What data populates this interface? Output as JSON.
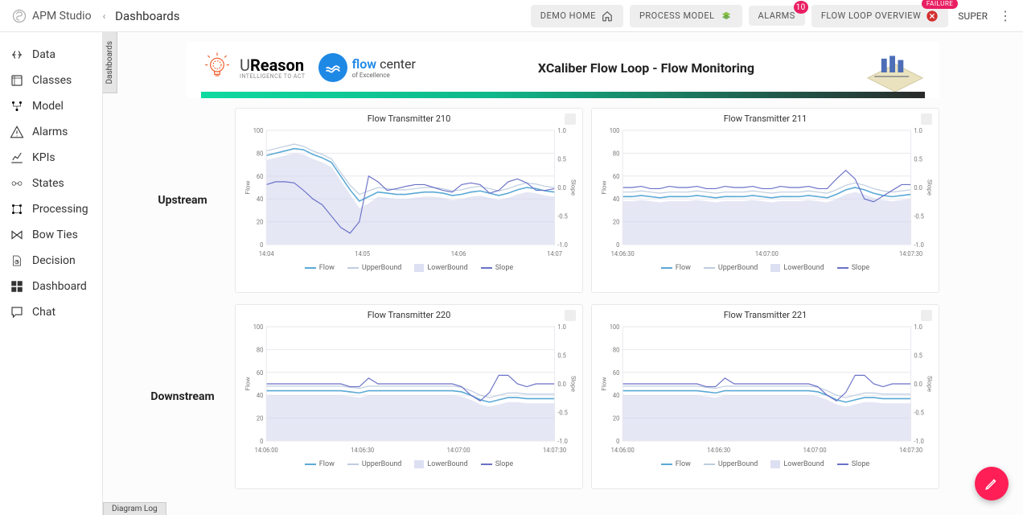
{
  "app": {
    "name": "APM Studio",
    "page": "Dashboards"
  },
  "topButtons": {
    "demoHome": "DEMO HOME",
    "processModel": "PROCESS MODEL",
    "alarms": "ALARMS",
    "alarmsBadge": "10",
    "flowLoop": "FLOW LOOP OVERVIEW",
    "flowLoopBadge": "FAILURE",
    "super": "SUPER"
  },
  "sidebar": [
    {
      "label": "Data",
      "icon": "data"
    },
    {
      "label": "Classes",
      "icon": "classes"
    },
    {
      "label": "Model",
      "icon": "model"
    },
    {
      "label": "Alarms",
      "icon": "alarms"
    },
    {
      "label": "KPIs",
      "icon": "kpis"
    },
    {
      "label": "States",
      "icon": "states"
    },
    {
      "label": "Processing",
      "icon": "processing"
    },
    {
      "label": "Bow Ties",
      "icon": "bowties"
    },
    {
      "label": "Decision",
      "icon": "decision"
    },
    {
      "label": "Dashboard",
      "icon": "dashboard"
    },
    {
      "label": "Chat",
      "icon": "chat"
    }
  ],
  "vertTab": "Dashboards",
  "footerTab": "Diagram Log",
  "banner": {
    "ureason": {
      "name": "UReason",
      "tag": "INTELLIGENCE TO ACT"
    },
    "flowcenter": {
      "name1": "flow",
      "name2": "center",
      "sub": "of Excellence"
    },
    "title": "XCaliber Flow Loop - Flow Monitoring"
  },
  "rows": {
    "upstream": "Upstream",
    "downstream": "Downstream"
  },
  "legendLabels": {
    "flow": "Flow",
    "upper": "UpperBound",
    "lower": "LowerBound",
    "slope": "Slope"
  },
  "chartStyle": {
    "flowColor": "#5aa9d6",
    "upperColor": "#bfcde0",
    "lowerFill": "#cfd3ec",
    "slopeColor": "#6a71c7",
    "gridColor": "#e8e8ef",
    "axisText": "#777",
    "bg": "#ffffff",
    "yLeft": {
      "min": 0,
      "max": 100,
      "step": 20,
      "label": "Flow"
    },
    "yRight": {
      "min": -1.0,
      "max": 1.0,
      "step": 0.5,
      "label": "Slope"
    },
    "tickFont": 8,
    "titleFont": 11
  },
  "charts": {
    "ft210": {
      "title": "Flow Transmitter 210",
      "xticks": [
        "14:04",
        "14:05",
        "14:06",
        "14:07"
      ],
      "flow": [
        78,
        80,
        82,
        84,
        83,
        79,
        76,
        72,
        60,
        48,
        38,
        42,
        46,
        45,
        44,
        44,
        45,
        46,
        46,
        45,
        43,
        44,
        46,
        47,
        45,
        43,
        45,
        48,
        50,
        49,
        47,
        46
      ],
      "upper": [
        82,
        84,
        86,
        88,
        86,
        82,
        79,
        75,
        63,
        52,
        44,
        47,
        50,
        49,
        48,
        48,
        49,
        50,
        50,
        49,
        47,
        48,
        50,
        51,
        49,
        47,
        49,
        52,
        54,
        53,
        51,
        50
      ],
      "lower": [
        74,
        76,
        78,
        80,
        79,
        75,
        72,
        68,
        56,
        44,
        32,
        36,
        42,
        41,
        40,
        40,
        41,
        42,
        42,
        41,
        39,
        40,
        42,
        43,
        41,
        39,
        41,
        44,
        46,
        45,
        43,
        42
      ],
      "slope": [
        0.05,
        0.1,
        0.1,
        0.08,
        -0.05,
        -0.2,
        -0.3,
        -0.5,
        -0.7,
        -0.8,
        -0.6,
        0.2,
        0.1,
        -0.05,
        -0.02,
        0.02,
        0.05,
        0.05,
        0,
        -0.05,
        -0.08,
        0.05,
        0.08,
        0.05,
        -0.1,
        -0.05,
        0.1,
        0.15,
        0.08,
        -0.05,
        -0.05,
        -0.02
      ]
    },
    "ft211": {
      "title": "Flow Transmitter 211",
      "xticks": [
        "14:06:30",
        "14:07:00",
        "14:07:30"
      ],
      "flow": [
        42,
        42,
        43,
        42,
        41,
        42,
        42,
        42,
        43,
        42,
        41,
        42,
        42,
        42,
        43,
        42,
        41,
        42,
        42,
        42,
        43,
        42,
        41,
        44,
        48,
        50,
        48,
        45,
        43,
        42,
        43,
        44
      ],
      "upper": [
        46,
        46,
        47,
        46,
        45,
        46,
        46,
        46,
        47,
        46,
        45,
        46,
        46,
        46,
        47,
        46,
        45,
        46,
        46,
        46,
        47,
        46,
        45,
        48,
        52,
        54,
        52,
        49,
        47,
        46,
        47,
        48
      ],
      "lower": [
        38,
        38,
        39,
        38,
        37,
        38,
        38,
        38,
        39,
        38,
        37,
        38,
        38,
        38,
        39,
        38,
        37,
        38,
        38,
        38,
        39,
        38,
        37,
        40,
        44,
        46,
        44,
        41,
        39,
        38,
        39,
        40
      ],
      "slope": [
        0,
        0,
        0.02,
        -0.02,
        -0.02,
        0.02,
        0,
        0,
        0.02,
        -0.02,
        -0.02,
        0.02,
        0,
        0,
        0.02,
        -0.02,
        -0.02,
        0.02,
        0,
        0,
        0.02,
        -0.02,
        -0.02,
        0.15,
        0.3,
        0.15,
        -0.2,
        -0.25,
        -0.15,
        -0.05,
        0.05,
        0.05
      ]
    },
    "ft220": {
      "title": "Flow Transmitter 220",
      "xticks": [
        "14:06:00",
        "14:06:30",
        "14:07:00",
        "14:07:30"
      ],
      "flow": [
        44,
        44,
        44,
        44,
        44,
        44,
        44,
        44,
        44,
        43,
        42,
        44,
        44,
        44,
        44,
        44,
        44,
        44,
        44,
        44,
        44,
        43,
        40,
        36,
        34,
        36,
        38,
        38,
        37,
        37,
        37,
        37
      ],
      "upper": [
        48,
        48,
        48,
        48,
        48,
        48,
        48,
        48,
        48,
        47,
        46,
        48,
        48,
        48,
        48,
        48,
        48,
        48,
        48,
        48,
        48,
        47,
        44,
        40,
        38,
        40,
        42,
        42,
        41,
        41,
        41,
        41
      ],
      "lower": [
        40,
        40,
        40,
        40,
        40,
        40,
        40,
        40,
        40,
        39,
        38,
        40,
        40,
        40,
        40,
        40,
        40,
        40,
        40,
        40,
        40,
        39,
        36,
        32,
        30,
        32,
        34,
        34,
        33,
        33,
        33,
        33
      ],
      "slope": [
        0,
        0,
        0,
        0,
        0,
        0,
        0,
        0,
        0,
        -0.05,
        -0.05,
        0.1,
        0,
        0,
        0,
        0,
        0,
        0,
        0,
        0,
        0,
        -0.05,
        -0.2,
        -0.3,
        -0.15,
        0.15,
        0.15,
        0,
        -0.05,
        0,
        0,
        0
      ]
    },
    "ft221": {
      "title": "Flow Transmitter 221",
      "xticks": [
        "14:06:00",
        "14:06:30",
        "14:07:00",
        "14:07:30"
      ],
      "flow": [
        44,
        44,
        44,
        44,
        44,
        44,
        44,
        44,
        44,
        43,
        42,
        44,
        44,
        44,
        44,
        44,
        44,
        44,
        44,
        44,
        44,
        43,
        40,
        36,
        34,
        36,
        38,
        38,
        37,
        37,
        37,
        37
      ],
      "upper": [
        48,
        48,
        48,
        48,
        48,
        48,
        48,
        48,
        48,
        47,
        46,
        48,
        48,
        48,
        48,
        48,
        48,
        48,
        48,
        48,
        48,
        47,
        44,
        40,
        38,
        40,
        42,
        42,
        41,
        41,
        41,
        41
      ],
      "lower": [
        40,
        40,
        40,
        40,
        40,
        40,
        40,
        40,
        40,
        39,
        38,
        40,
        40,
        40,
        40,
        40,
        40,
        40,
        40,
        40,
        40,
        39,
        36,
        32,
        30,
        32,
        34,
        34,
        33,
        33,
        33,
        33
      ],
      "slope": [
        0,
        0,
        0,
        0,
        0,
        0,
        0,
        0,
        0,
        -0.05,
        -0.05,
        0.1,
        0,
        0,
        0,
        0,
        0,
        0,
        0,
        0,
        0,
        -0.05,
        -0.2,
        -0.3,
        -0.15,
        0.15,
        0.15,
        0,
        -0.05,
        0,
        0,
        0
      ]
    }
  }
}
